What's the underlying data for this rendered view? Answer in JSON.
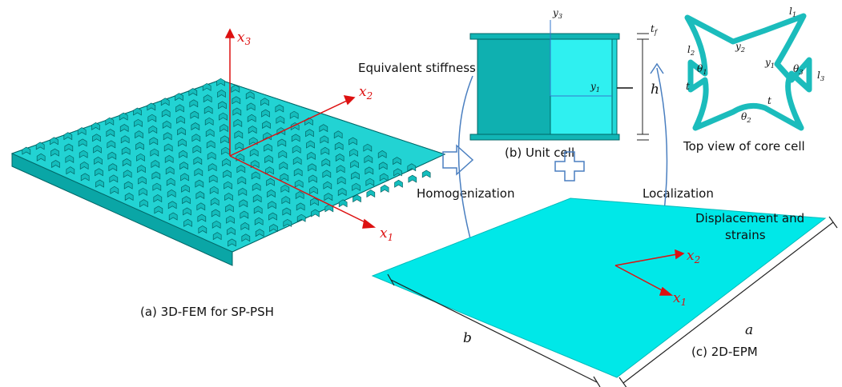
{
  "panel_a": {
    "caption": "(a)  3D-FEM for SP-PSH",
    "axes": [
      {
        "base": "x",
        "sub": "3"
      },
      {
        "base": "x",
        "sub": "2"
      },
      {
        "base": "x",
        "sub": "1"
      }
    ]
  },
  "panel_b": {
    "caption": "(b)  Unit cell",
    "labels": {
      "y3": {
        "base": "y",
        "sub": "3"
      },
      "y1": {
        "base": "y",
        "sub": "1"
      },
      "tf": {
        "base": "t",
        "sub": "f"
      },
      "h": "h"
    }
  },
  "core": {
    "caption": "Top view of core cell",
    "labels": {
      "l1": {
        "base": "l",
        "sub": "1"
      },
      "l2": {
        "base": "l",
        "sub": "2"
      },
      "l3": {
        "base": "l",
        "sub": "3"
      },
      "y2": {
        "base": "y",
        "sub": "2"
      },
      "y1": {
        "base": "y",
        "sub": "1"
      },
      "th1": {
        "base": "θ",
        "sub": "1"
      },
      "th2": {
        "base": "θ",
        "sub": "2"
      },
      "th3": {
        "base": "θ",
        "sub": "3"
      },
      "t_a": "t",
      "t_b": "t"
    }
  },
  "panel_c": {
    "caption": "(c)  2D-EPM",
    "axes": [
      {
        "base": "x",
        "sub": "2"
      },
      {
        "base": "x",
        "sub": "1"
      }
    ],
    "a": "a",
    "b": "b",
    "note": [
      "Displacement and",
      "strains"
    ]
  },
  "arrows": {
    "stiffness": "Equivalent stiffness",
    "homogenization": "Homogenization",
    "localization": "Localization"
  }
}
